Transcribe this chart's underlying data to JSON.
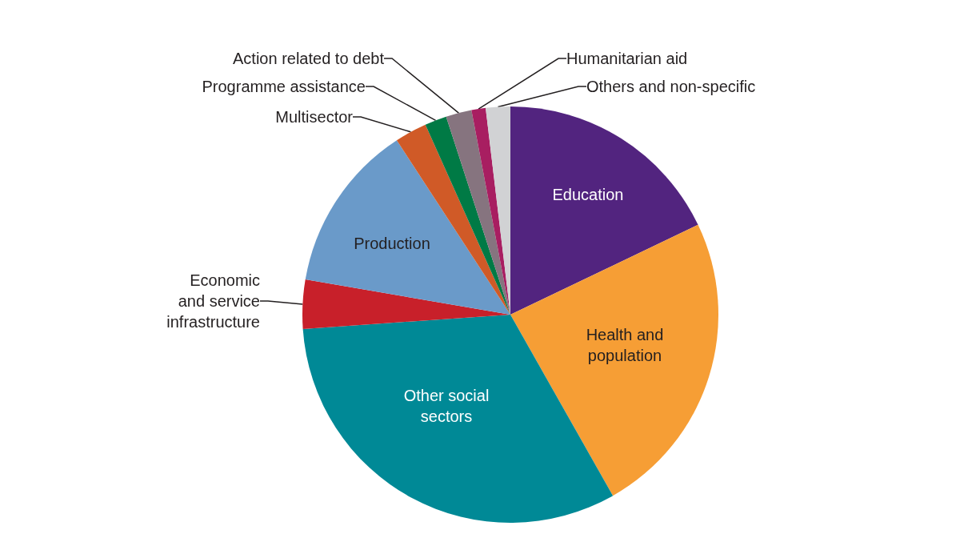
{
  "chart_data": {
    "type": "pie",
    "categories": [
      "Education",
      "Health and population",
      "Other social sectors",
      "Economic and service infrastructure",
      "Production",
      "Multisector",
      "Programme assistance",
      "Action related to debt",
      "Humanitarian aid",
      "Others and non-specific"
    ],
    "values": [
      17.9,
      23.9,
      32.1,
      3.8,
      13.1,
      2.5,
      1.7,
      2.0,
      1.1,
      1.9
    ],
    "colors": [
      "#52247f",
      "#f69e35",
      "#008996",
      "#c8202a",
      "#6a9ac9",
      "#d05a27",
      "#007a45",
      "#86747f",
      "#a81e61",
      "#d1d2d4"
    ]
  }
}
